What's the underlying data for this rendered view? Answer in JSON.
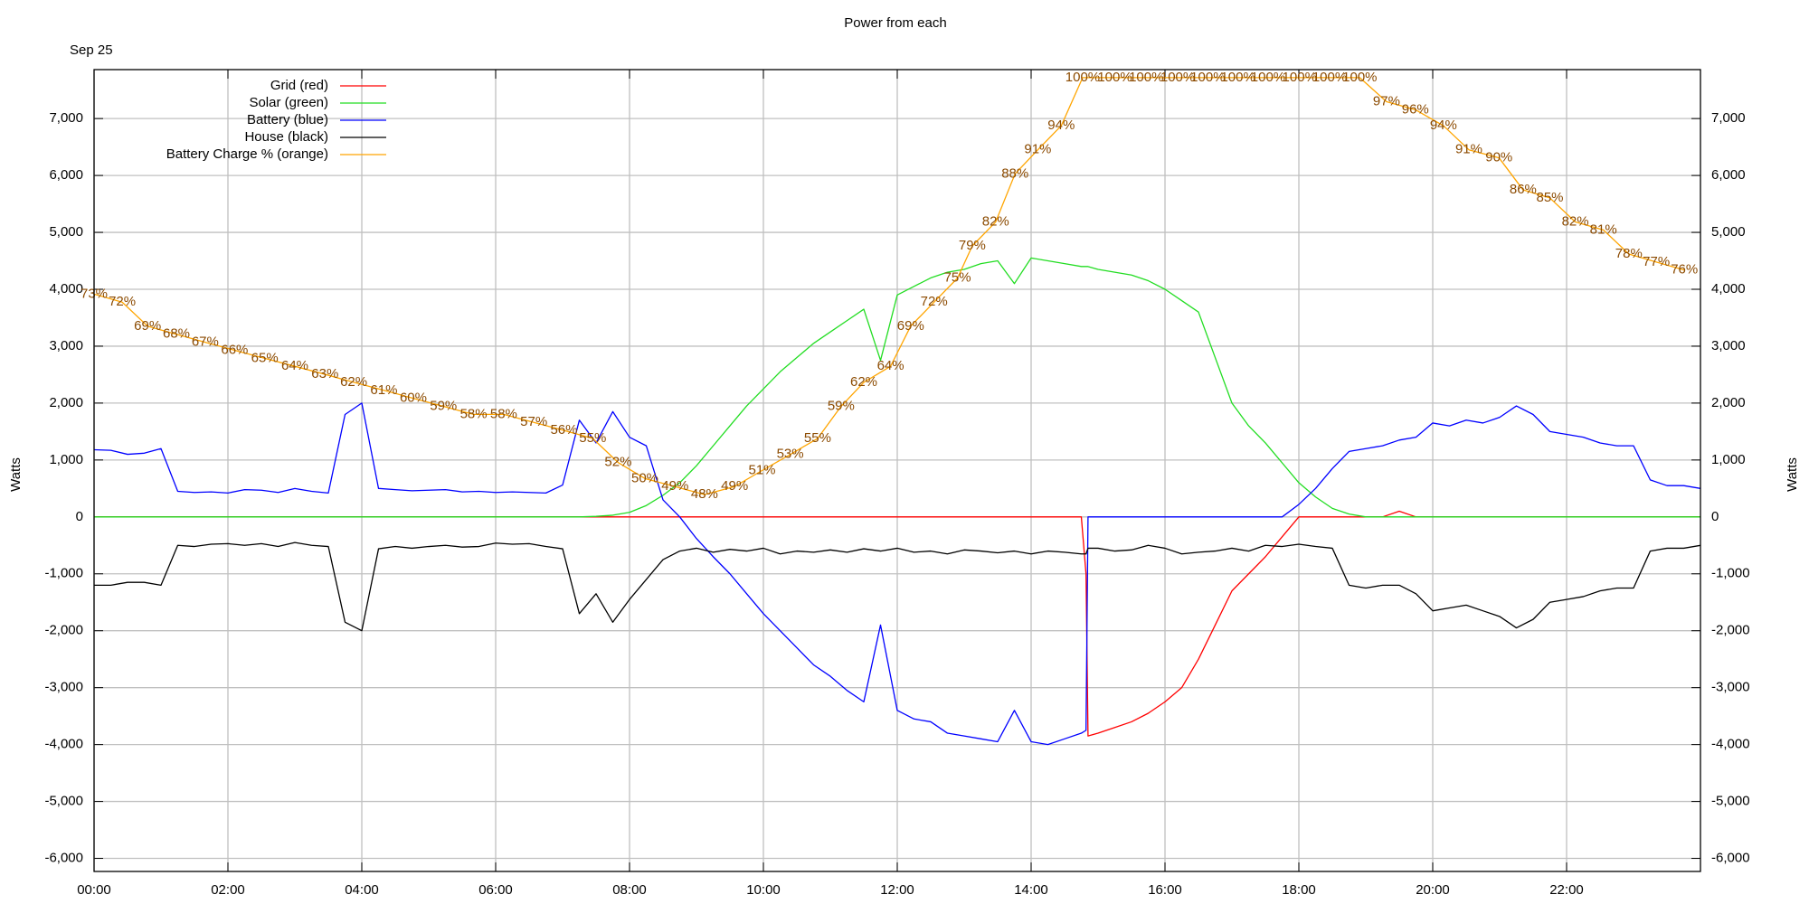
{
  "chart_data": {
    "type": "line",
    "title": "Power from each",
    "date_label": "Sep 25",
    "y_label": "Watts",
    "legend": "upper left",
    "grid": true,
    "xlim": [
      0,
      24
    ],
    "xticks": [
      {
        "value": 0,
        "label": "00:00"
      },
      {
        "value": 2,
        "label": "02:00"
      },
      {
        "value": 4,
        "label": "04:00"
      },
      {
        "value": 6,
        "label": "06:00"
      },
      {
        "value": 8,
        "label": "08:00"
      },
      {
        "value": 10,
        "label": "10:00"
      },
      {
        "value": 12,
        "label": "12:00"
      },
      {
        "value": 14,
        "label": "14:00"
      },
      {
        "value": 16,
        "label": "16:00"
      },
      {
        "value": 18,
        "label": "18:00"
      },
      {
        "value": 20,
        "label": "20:00"
      },
      {
        "value": 22,
        "label": "22:00"
      }
    ],
    "ylim": [
      -6230,
      7860
    ],
    "yticks": [
      {
        "value": -6000,
        "label": "-6,000"
      },
      {
        "value": -5000,
        "label": "-5,000"
      },
      {
        "value": -4000,
        "label": "-4,000"
      },
      {
        "value": -3000,
        "label": "-3,000"
      },
      {
        "value": -2000,
        "label": "-2,000"
      },
      {
        "value": -1000,
        "label": "-1,000"
      },
      0,
      {
        "value": 1000,
        "label": "1,000"
      },
      {
        "value": 2000,
        "label": "2,000"
      },
      {
        "value": 3000,
        "label": "3,000"
      },
      {
        "value": 4000,
        "label": "4,000"
      },
      {
        "value": 5000,
        "label": "5,000"
      },
      {
        "value": 6000,
        "label": "6,000"
      },
      {
        "value": 7000,
        "label": "7,000"
      }
    ],
    "y2lim": [
      1,
      101
    ],
    "x": [
      0,
      0.25,
      0.5,
      0.75,
      1,
      1.25,
      1.5,
      1.75,
      2,
      2.25,
      2.5,
      2.75,
      3,
      3.25,
      3.5,
      3.75,
      4,
      4.25,
      4.5,
      4.75,
      5,
      5.25,
      5.5,
      5.75,
      6,
      6.25,
      6.5,
      6.75,
      7,
      7.25,
      7.5,
      7.75,
      8,
      8.25,
      8.5,
      8.75,
      9,
      9.25,
      9.5,
      9.75,
      10,
      10.25,
      10.5,
      10.75,
      11,
      11.25,
      11.5,
      11.75,
      12,
      12.25,
      12.5,
      12.75,
      13,
      13.25,
      13.5,
      13.75,
      14,
      14.25,
      14.5,
      14.75,
      14.82,
      14.85,
      15,
      15.25,
      15.5,
      15.75,
      16,
      16.25,
      16.5,
      16.75,
      17,
      17.25,
      17.5,
      17.75,
      18,
      18.25,
      18.5,
      18.75,
      19,
      19.25,
      19.5,
      19.75,
      20,
      20.25,
      20.5,
      20.75,
      21,
      21.25,
      21.5,
      21.75,
      22,
      22.25,
      22.5,
      22.75,
      23,
      23.25,
      23.5,
      23.75,
      24
    ],
    "series": [
      {
        "name": "Grid (red)",
        "color": "#ff0000",
        "values": [
          0,
          0,
          0,
          0,
          0,
          0,
          0,
          0,
          0,
          0,
          0,
          0,
          0,
          0,
          0,
          0,
          0,
          0,
          0,
          0,
          0,
          0,
          0,
          0,
          0,
          0,
          0,
          0,
          0,
          0,
          0,
          0,
          0,
          0,
          0,
          0,
          0,
          0,
          0,
          0,
          0,
          0,
          0,
          0,
          0,
          0,
          0,
          0,
          0,
          0,
          0,
          0,
          0,
          0,
          0,
          0,
          0,
          0,
          0,
          0,
          -1000,
          -3850,
          -3800,
          -3700,
          -3600,
          -3450,
          -3250,
          -3000,
          -2500,
          -1900,
          -1300,
          -1000,
          -700,
          -350,
          0,
          0,
          0,
          0,
          0,
          0,
          100,
          0,
          0,
          0,
          0,
          0,
          0,
          0,
          0,
          0,
          0,
          0,
          0,
          0,
          0,
          0,
          0,
          0,
          0
        ]
      },
      {
        "name": "Solar (green)",
        "color": "#22dd22",
        "values": [
          0,
          0,
          0,
          0,
          0,
          0,
          0,
          0,
          0,
          0,
          0,
          0,
          0,
          0,
          0,
          0,
          0,
          0,
          0,
          0,
          0,
          0,
          0,
          0,
          0,
          0,
          0,
          0,
          0,
          0,
          10,
          30,
          80,
          200,
          380,
          600,
          900,
          1250,
          1600,
          1950,
          2250,
          2550,
          2800,
          3050,
          3250,
          3450,
          3650,
          2750,
          3900,
          4050,
          4200,
          4300,
          4350,
          4450,
          4500,
          4100,
          4550,
          4500,
          4450,
          4400,
          4400,
          4400,
          4350,
          4300,
          4250,
          4150,
          4000,
          3800,
          3600,
          2800,
          2000,
          1600,
          1300,
          950,
          600,
          350,
          150,
          50,
          0,
          0,
          0,
          0,
          0,
          0,
          0,
          0,
          0,
          0,
          0,
          0,
          0,
          0,
          0,
          0,
          0,
          0,
          0,
          0,
          0
        ]
      },
      {
        "name": "Battery (blue)",
        "color": "#0000ff",
        "values": [
          1180,
          1170,
          1100,
          1120,
          1200,
          450,
          430,
          440,
          420,
          480,
          470,
          430,
          500,
          450,
          420,
          1800,
          2000,
          500,
          480,
          460,
          470,
          480,
          440,
          450,
          430,
          440,
          430,
          420,
          560,
          1700,
          1300,
          1850,
          1400,
          1250,
          300,
          0,
          -380,
          -700,
          -1000,
          -1350,
          -1700,
          -2000,
          -2300,
          -2600,
          -2800,
          -3050,
          -3250,
          -1900,
          -3400,
          -3550,
          -3600,
          -3800,
          -3850,
          -3900,
          -3950,
          -3400,
          -3950,
          -4000,
          -3900,
          -3800,
          -3750,
          0,
          0,
          0,
          0,
          0,
          0,
          0,
          0,
          0,
          0,
          0,
          0,
          0,
          220,
          500,
          850,
          1150,
          1200,
          1250,
          1350,
          1400,
          1650,
          1600,
          1700,
          1650,
          1750,
          1950,
          1800,
          1500,
          1450,
          1400,
          1300,
          1250,
          1250,
          650,
          550,
          550,
          500
        ]
      },
      {
        "name": "House (black)",
        "color": "#000000",
        "values": [
          -1200,
          -1200,
          -1150,
          -1150,
          -1200,
          -500,
          -520,
          -480,
          -470,
          -500,
          -470,
          -520,
          -450,
          -500,
          -520,
          -1850,
          -2000,
          -560,
          -520,
          -550,
          -520,
          -500,
          -530,
          -520,
          -460,
          -480,
          -470,
          -520,
          -560,
          -1700,
          -1350,
          -1850,
          -1450,
          -1100,
          -750,
          -600,
          -550,
          -620,
          -570,
          -600,
          -550,
          -650,
          -600,
          -620,
          -580,
          -620,
          -560,
          -600,
          -550,
          -620,
          -600,
          -650,
          -580,
          -600,
          -630,
          -600,
          -650,
          -600,
          -620,
          -650,
          -650,
          -550,
          -550,
          -600,
          -580,
          -500,
          -550,
          -650,
          -620,
          -600,
          -550,
          -600,
          -500,
          -520,
          -480,
          -520,
          -550,
          -1200,
          -1250,
          -1200,
          -1200,
          -1350,
          -1650,
          -1600,
          -1550,
          -1650,
          -1750,
          -1950,
          -1800,
          -1500,
          -1450,
          -1400,
          -1300,
          -1250,
          -1250,
          -600,
          -550,
          -550,
          -500
        ]
      },
      {
        "name": "Battery Charge % (orange)",
        "color": "#ffa500",
        "axis": "y2",
        "x": [
          0,
          0.42,
          0.8,
          1.23,
          1.66,
          2.1,
          2.55,
          3,
          3.45,
          3.88,
          4.33,
          4.77,
          5.22,
          5.67,
          6.12,
          6.57,
          7.02,
          7.45,
          7.83,
          8.23,
          8.68,
          9.12,
          9.57,
          9.98,
          10.4,
          10.81,
          11.16,
          11.5,
          11.9,
          12.2,
          12.55,
          12.9,
          13.12,
          13.47,
          13.76,
          14.1,
          14.45,
          14.77,
          15.25,
          15.72,
          16.19,
          16.64,
          17.09,
          17.54,
          18.01,
          18.46,
          18.91,
          19.31,
          19.74,
          20.16,
          20.54,
          20.99,
          21.35,
          21.75,
          22.13,
          22.55,
          22.93,
          23.34,
          23.76
        ],
        "values": [
          73,
          72,
          69,
          68,
          67,
          66,
          65,
          64,
          63,
          62,
          61,
          60,
          59,
          58,
          58,
          57,
          56,
          55,
          52,
          50,
          49,
          48,
          49,
          51,
          53,
          55,
          59,
          62,
          64,
          69,
          72,
          75,
          79,
          82,
          88,
          91,
          94,
          100,
          100,
          100,
          100,
          100,
          100,
          100,
          100,
          100,
          100,
          97,
          96,
          94,
          91,
          90,
          86,
          85,
          82,
          81,
          78,
          77,
          76
        ],
        "value_labels": [
          "73%",
          "72%",
          "69%",
          "68%",
          "67%",
          "66%",
          "65%",
          "64%",
          "63%",
          "62%",
          "61%",
          "60%",
          "59%",
          "58%",
          "58%",
          "57%",
          "56%",
          "55%",
          "52%",
          "50%",
          "49%",
          "48%",
          "49%",
          "51%",
          "53%",
          "55%",
          "59%",
          "62%",
          "64%",
          "69%",
          "72%",
          "75%",
          "79%",
          "82%",
          "88%",
          "91%",
          "94%",
          "100%",
          "100%",
          "100%",
          "100%",
          "100%",
          "100%",
          "100%",
          "100%",
          "100%",
          "100%",
          "97%",
          "96%",
          "94%",
          "91%",
          "90%",
          "86%",
          "85%",
          "82%",
          "81%",
          "78%",
          "77%",
          "76%"
        ]
      }
    ]
  }
}
